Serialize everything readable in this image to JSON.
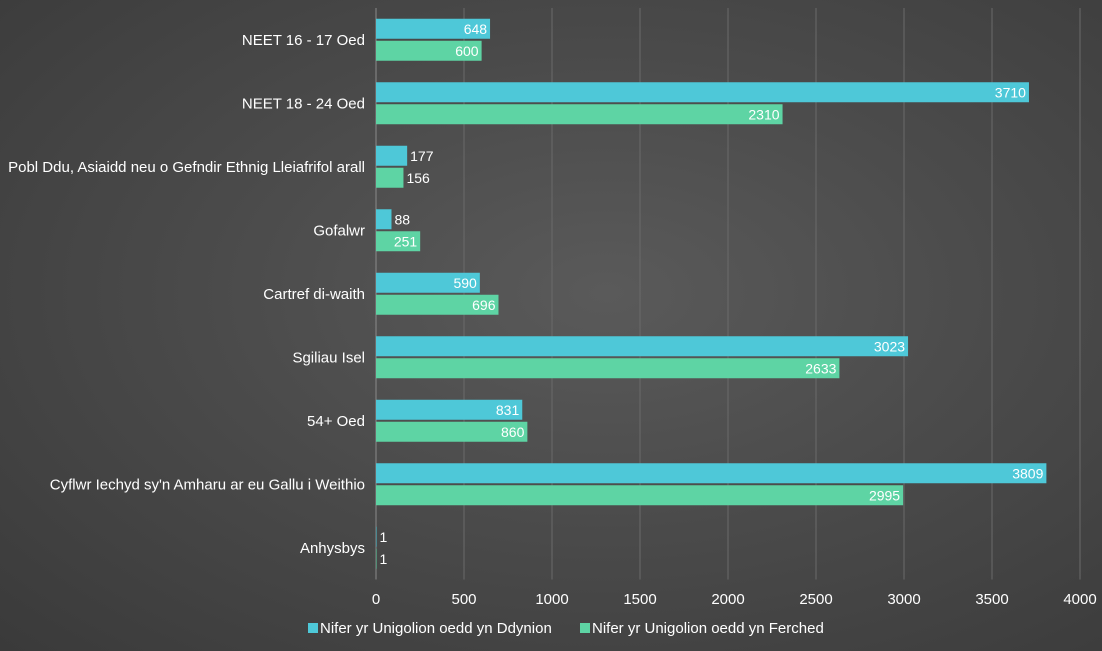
{
  "chart_data": {
    "type": "bar",
    "orientation": "horizontal",
    "categories": [
      "NEET 16 - 17 Oed",
      "NEET 18 - 24 Oed",
      "Pobl Ddu, Asiaidd neu o Gefndir Ethnig Lleiafrifol arall",
      "Gofalwr",
      "Cartref di-waith",
      "Sgiliau Isel",
      "54+ Oed",
      "Cyflwr Iechyd sy'n Amharu ar eu Gallu i Weithio",
      "Anhysbys"
    ],
    "series": [
      {
        "name": "Nifer yr Unigolion oedd yn Ddynion",
        "color": "#4ec8d8",
        "values": [
          648,
          3710,
          177,
          88,
          590,
          3023,
          831,
          3809,
          1
        ]
      },
      {
        "name": "Nifer yr Unigolion oedd yn Ferched",
        "color": "#5ed4a4",
        "values": [
          600,
          2310,
          156,
          251,
          696,
          2633,
          860,
          2995,
          1
        ]
      }
    ],
    "xlim": [
      0,
      4000
    ],
    "xticks": [
      0,
      500,
      1000,
      1500,
      2000,
      2500,
      3000,
      3500,
      4000
    ],
    "grid": true,
    "legend_position": "bottom"
  }
}
